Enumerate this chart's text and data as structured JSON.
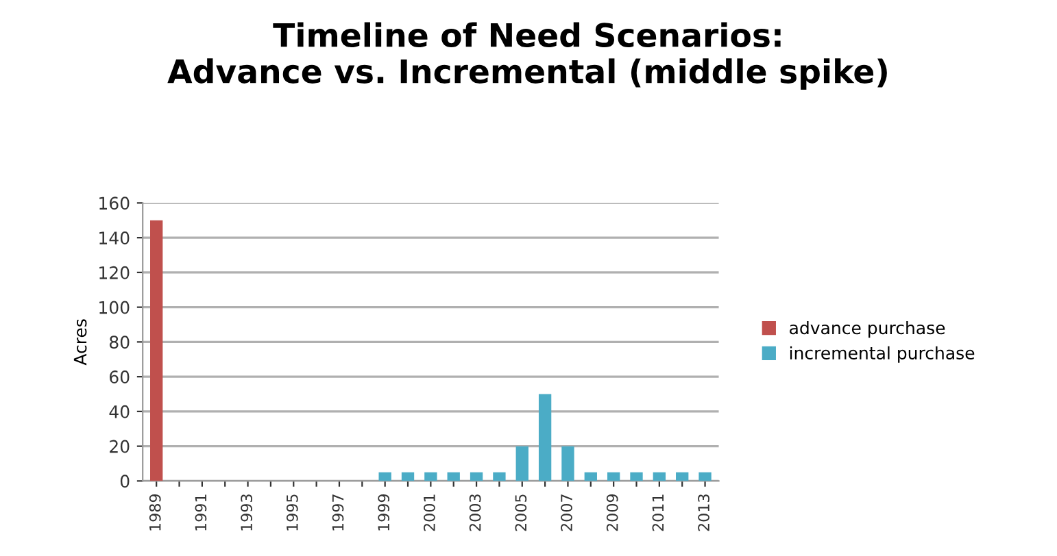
{
  "chart_data": {
    "type": "bar",
    "title": "Timeline of Need Scenarios:\nAdvance vs. Incremental (middle spike)",
    "ylabel": "Acres",
    "categories": [
      "1989",
      null,
      "1991",
      null,
      "1993",
      null,
      "1995",
      null,
      "1997",
      null,
      "1999",
      null,
      "2001",
      null,
      "2003",
      null,
      "2005",
      null,
      "2007",
      null,
      "2009",
      null,
      "2011",
      null,
      "2013"
    ],
    "series": [
      {
        "name": "advance purchase",
        "color": "#c0504d",
        "values": [
          150,
          null,
          null,
          null,
          null,
          null,
          null,
          null,
          null,
          null,
          null,
          null,
          null,
          null,
          null,
          null,
          null,
          null,
          null,
          null,
          null,
          null,
          null,
          null,
          null
        ]
      },
      {
        "name": "incremental purchase",
        "color": "#4bacc6",
        "values": [
          null,
          null,
          null,
          null,
          null,
          null,
          null,
          null,
          null,
          null,
          5,
          5,
          5,
          5,
          5,
          5,
          20,
          50,
          20,
          5,
          5,
          5,
          5,
          5,
          5
        ]
      }
    ],
    "ylim": [
      0,
      160
    ],
    "yticks": [
      0,
      20,
      40,
      60,
      80,
      100,
      120,
      140,
      160
    ],
    "grid": "y",
    "legend": "right"
  }
}
